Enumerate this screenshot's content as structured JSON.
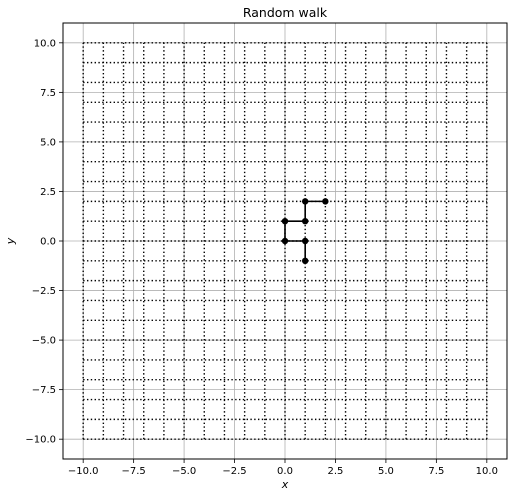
{
  "chart_data": {
    "type": "line",
    "title": "Random walk",
    "xlabel": "x",
    "ylabel": "y",
    "xlim": [
      -11,
      11
    ],
    "ylim": [
      -11,
      11
    ],
    "grid": true,
    "lattice": {
      "min": -10,
      "max": 10,
      "step": 1,
      "style": "dotted"
    },
    "xticks": [
      -10.0,
      -7.5,
      -5.0,
      -2.5,
      0.0,
      2.5,
      5.0,
      7.5,
      10.0
    ],
    "yticks": [
      -10.0,
      -7.5,
      -5.0,
      -2.5,
      0.0,
      2.5,
      5.0,
      7.5,
      10.0
    ],
    "xtick_labels": [
      "−10.0",
      "−7.5",
      "−5.0",
      "−2.5",
      "0.0",
      "2.5",
      "5.0",
      "7.5",
      "10.0"
    ],
    "ytick_labels": [
      "−10.0",
      "−7.5",
      "−5.0",
      "−2.5",
      "0.0",
      "2.5",
      "5.0",
      "7.5",
      "10.0"
    ],
    "series": [
      {
        "x": [
          1,
          1,
          0,
          0,
          1,
          1,
          2
        ],
        "y": [
          -1,
          0,
          0,
          1,
          1,
          2,
          2
        ],
        "color": "#000000",
        "marker": "o"
      }
    ]
  }
}
